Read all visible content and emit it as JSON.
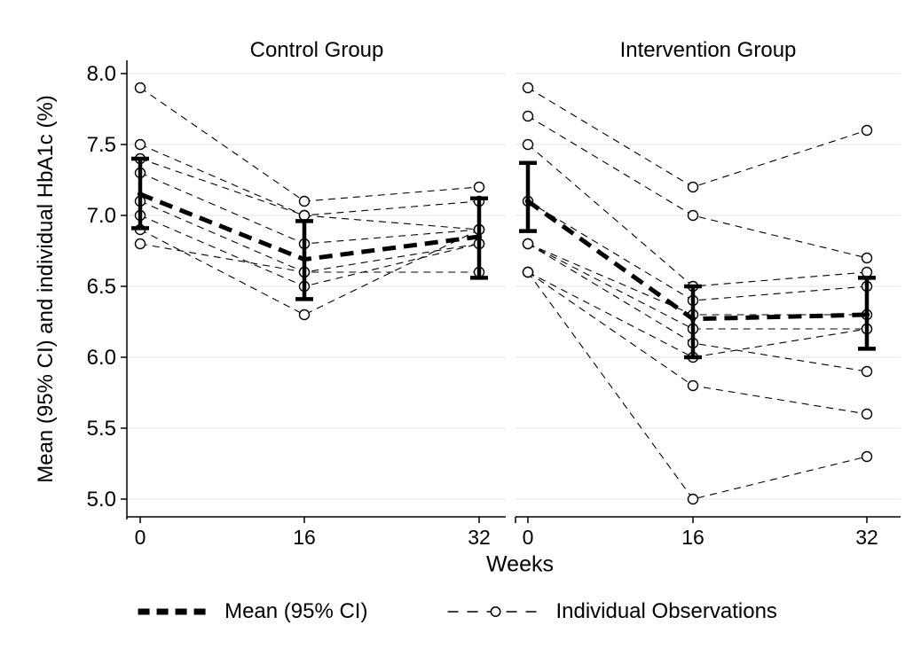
{
  "figure": {
    "panel_titles": {
      "control": "Control Group",
      "intervention": "Intervention Group"
    },
    "y_axis_title": "Mean (95% CI) and individual HbA1c (%)",
    "x_axis_title": "Weeks",
    "legend": {
      "mean_label": "Mean (95% CI)",
      "individual_label": "Individual Observations"
    },
    "colors": {
      "line": "#000000",
      "grid": "#e7eef1",
      "background": "#ffffff",
      "marker_fill": "#ffffff"
    }
  },
  "chart_data": {
    "type": "line",
    "x": [
      0,
      16,
      32
    ],
    "x_tick_labels": [
      "0",
      "16",
      "32"
    ],
    "xlabel": "Weeks",
    "ylabel": "Mean (95% CI) and individual HbA1c (%)",
    "ylim": [
      5.0,
      8.0
    ],
    "y_ticks": [
      8.0,
      7.5,
      7.0,
      6.5,
      6.0,
      5.5,
      5.0
    ],
    "y_tick_labels": [
      "8.0",
      "7.5",
      "7.0",
      "6.5",
      "6.0",
      "5.5",
      "5.0"
    ],
    "grid": true,
    "legend_position": "bottom",
    "panels": [
      {
        "title": "Control Group",
        "mean_series": {
          "name": "Mean (95% CI)",
          "x": [
            0,
            16,
            32
          ],
          "mean": [
            7.15,
            6.69,
            6.85
          ],
          "ci_low": [
            6.91,
            6.41,
            6.56
          ],
          "ci_high": [
            7.4,
            6.96,
            7.12
          ]
        },
        "individual_series": {
          "name": "Individual Observations",
          "x": [
            0,
            16,
            32
          ],
          "subjects": [
            [
              7.9,
              7.1,
              7.2
            ],
            [
              7.5,
              7.0,
              7.1
            ],
            [
              7.4,
              7.0,
              6.9
            ],
            [
              7.3,
              6.8,
              6.9
            ],
            [
              7.1,
              6.6,
              6.8
            ],
            [
              7.0,
              6.5,
              6.8
            ],
            [
              6.9,
              6.3,
              6.9
            ],
            [
              6.8,
              6.6,
              6.6
            ]
          ]
        }
      },
      {
        "title": "Intervention Group",
        "mean_series": {
          "name": "Mean (95% CI)",
          "x": [
            0,
            16,
            32
          ],
          "mean": [
            7.1,
            6.27,
            6.3
          ],
          "ci_low": [
            6.89,
            6.0,
            6.06
          ],
          "ci_high": [
            7.37,
            6.5,
            6.56
          ]
        },
        "individual_series": {
          "name": "Individual Observations",
          "x": [
            0,
            16,
            32
          ],
          "subjects": [
            [
              7.9,
              7.2,
              7.6
            ],
            [
              7.7,
              7.0,
              6.7
            ],
            [
              7.5,
              6.5,
              6.6
            ],
            [
              7.1,
              6.4,
              6.5
            ],
            [
              6.8,
              6.3,
              6.3
            ],
            [
              6.8,
              6.2,
              6.2
            ],
            [
              6.8,
              6.1,
              5.9
            ],
            [
              6.6,
              6.0,
              6.2
            ],
            [
              6.6,
              5.8,
              5.6
            ],
            [
              6.6,
              5.0,
              5.3
            ]
          ]
        }
      }
    ]
  }
}
